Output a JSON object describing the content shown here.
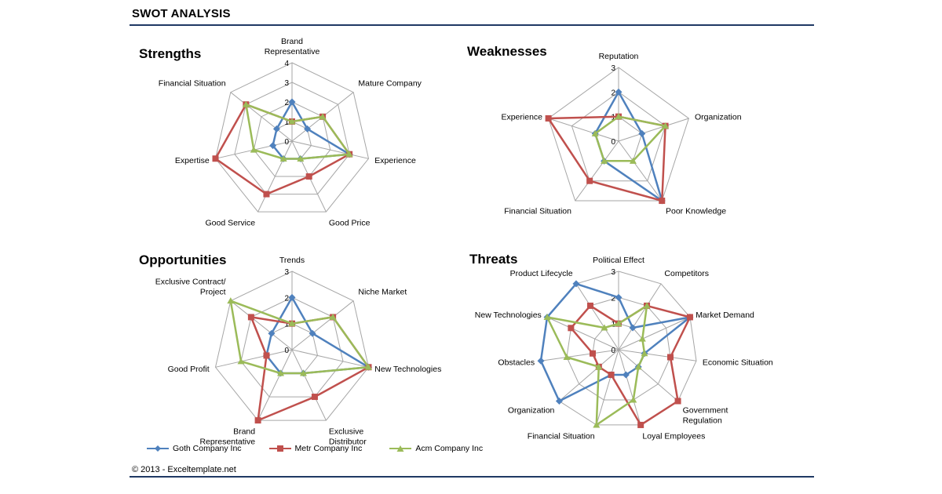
{
  "page": {
    "title": "SWOT ANALYSIS",
    "footer": "© 2013 - Exceltemplate.net"
  },
  "legend": [
    {
      "name": "Goth Company Inc",
      "color": "#4f81bd",
      "marker": "diamond"
    },
    {
      "name": "Metr Company Inc",
      "color": "#c0504d",
      "marker": "square"
    },
    {
      "name": "Acm Company Inc",
      "color": "#9bbb59",
      "marker": "triangle"
    }
  ],
  "chart_data": [
    {
      "type": "radar",
      "title": "Strengths",
      "categories": [
        [
          "Brand",
          "Representative"
        ],
        [
          "Mature Company"
        ],
        [
          "Experience"
        ],
        [
          "Good Price"
        ],
        [
          "Good Service"
        ],
        [
          "Expertise"
        ],
        [
          "Financial Situation"
        ]
      ],
      "rmax": 4,
      "ticks": [
        "0",
        "1",
        "2",
        "3",
        "4"
      ],
      "series": [
        {
          "name": "Goth Company Inc",
          "values": [
            2,
            1,
            3,
            1,
            1,
            1,
            1
          ]
        },
        {
          "name": "Metr Company Inc",
          "values": [
            1,
            2,
            3,
            2,
            3,
            4,
            3
          ]
        },
        {
          "name": "Acm Company Inc",
          "values": [
            1,
            2,
            3,
            1,
            1,
            2,
            3
          ]
        }
      ]
    },
    {
      "type": "radar",
      "title": "Weaknesses",
      "categories": [
        [
          "Reputation"
        ],
        [
          "Organization"
        ],
        [
          "Poor Knowledge"
        ],
        [
          "Financial Situation"
        ],
        [
          "Experience"
        ]
      ],
      "rmax": 3,
      "ticks": [
        "0",
        "1",
        "2",
        "3"
      ],
      "series": [
        {
          "name": "Goth Company Inc",
          "values": [
            2,
            1,
            3,
            1,
            1
          ]
        },
        {
          "name": "Metr Company Inc",
          "values": [
            1,
            2,
            3,
            2,
            3
          ]
        },
        {
          "name": "Acm Company Inc",
          "values": [
            1,
            2,
            1,
            1,
            1
          ]
        }
      ]
    },
    {
      "type": "radar",
      "title": "Opportunities",
      "categories": [
        [
          "Trends"
        ],
        [
          "Niche Market"
        ],
        [
          "New Technologies"
        ],
        [
          "Exclusive",
          "Distributor"
        ],
        [
          "Brand",
          "Representative"
        ],
        [
          "Good Profit"
        ],
        [
          "Exclusive Contract/",
          "Project"
        ]
      ],
      "rmax": 3,
      "ticks": [
        "0",
        "1",
        "2",
        "3"
      ],
      "series": [
        {
          "name": "Goth Company Inc",
          "values": [
            2,
            1,
            3,
            1,
            1,
            1,
            1
          ]
        },
        {
          "name": "Metr Company Inc",
          "values": [
            1,
            2,
            3,
            2,
            3,
            1,
            2
          ]
        },
        {
          "name": "Acm Company Inc",
          "values": [
            1,
            2,
            3,
            1,
            1,
            2,
            3
          ]
        }
      ]
    },
    {
      "type": "radar",
      "title": "Threats",
      "categories": [
        [
          "Political Effect"
        ],
        [
          "Competitors"
        ],
        [
          "Market Demand"
        ],
        [
          "Economic Situation"
        ],
        [
          "Government",
          "Regulation"
        ],
        [
          "Loyal Employees"
        ],
        [
          "Financial Situation"
        ],
        [
          "Organization"
        ],
        [
          "Obstacles"
        ],
        [
          "New Technologies"
        ],
        [
          "Product Lifecycle"
        ]
      ],
      "rmax": 3,
      "ticks": [
        "0",
        "1",
        "2",
        "3"
      ],
      "series": [
        {
          "name": "Goth Company Inc",
          "values": [
            2,
            1,
            3,
            1,
            1,
            1,
            1,
            3,
            3,
            3,
            3
          ]
        },
        {
          "name": "Metr Company Inc",
          "values": [
            1,
            2,
            3,
            2,
            3,
            3,
            1,
            1,
            1,
            2,
            2
          ]
        },
        {
          "name": "Acm Company Inc",
          "values": [
            1,
            2,
            1,
            1,
            1,
            2,
            3,
            1,
            2,
            3,
            1
          ]
        }
      ]
    }
  ]
}
